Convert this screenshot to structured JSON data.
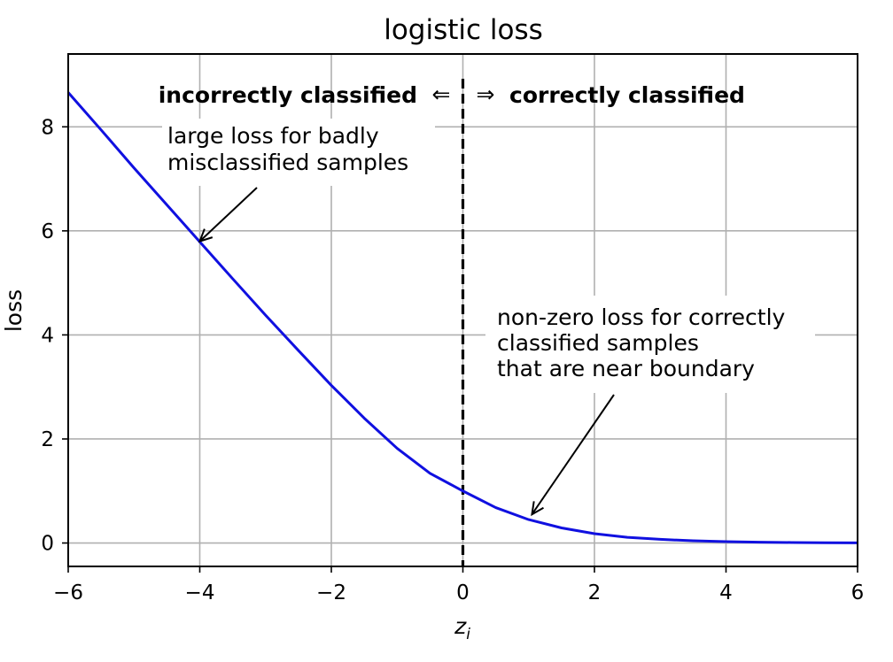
{
  "chart_data": {
    "type": "line",
    "title": "logistic loss",
    "xlabel": "z",
    "xlabel_subscript": "i",
    "ylabel": "loss",
    "xlim": [
      -6,
      6
    ],
    "ylim": [
      -0.45,
      9.4
    ],
    "xticks": [
      -6,
      -4,
      -2,
      0,
      2,
      4,
      6
    ],
    "xtick_labels": [
      "−6",
      "−4",
      "−2",
      "0",
      "2",
      "4",
      "6"
    ],
    "yticks": [
      0,
      2,
      4,
      6,
      8
    ],
    "ytick_labels": [
      "0",
      "2",
      "4",
      "6",
      "8"
    ],
    "grid": true,
    "series": [
      {
        "color": "#1010e0",
        "x": [
          -6,
          -5.5,
          -5,
          -4.5,
          -4,
          -3.5,
          -3,
          -2.5,
          -2,
          -1.5,
          -1,
          -0.5,
          0,
          0.5,
          1,
          1.5,
          2,
          2.5,
          3,
          3.5,
          4,
          4.5,
          5,
          5.5,
          6
        ],
        "y": [
          8.66,
          7.94,
          7.21,
          6.5,
          5.79,
          5.08,
          4.38,
          3.7,
          3.03,
          2.4,
          1.82,
          1.34,
          1.0,
          0.68,
          0.45,
          0.29,
          0.18,
          0.11,
          0.07,
          0.043,
          0.026,
          0.016,
          0.0097,
          0.0059,
          0.0036
        ]
      }
    ],
    "boundary": {
      "x": 0,
      "style": "dashed",
      "color": "#000000"
    },
    "header_left": "incorrectly classified",
    "arrow_left": "⇐",
    "arrow_right": "⇒",
    "header_right": "correctly classified",
    "annotations": [
      {
        "lines": [
          "large loss for badly",
          "misclassified samples"
        ],
        "target": [
          -4,
          5.8
        ]
      },
      {
        "lines": [
          "non-zero loss for correctly",
          "classified samples",
          "that are near boundary"
        ],
        "target": [
          1.05,
          0.55
        ]
      }
    ]
  }
}
